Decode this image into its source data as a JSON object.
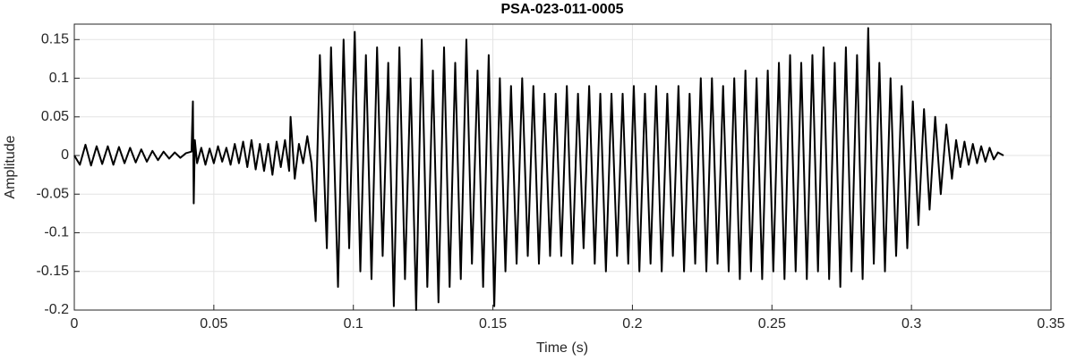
{
  "chart_data": {
    "type": "line",
    "title": "PSA-023-011-0005",
    "x_label": "Time (s)",
    "y_label": "Amplitude",
    "xlim": [
      0,
      0.35
    ],
    "xticks": [
      0,
      0.05,
      0.1,
      0.15,
      0.2,
      0.25,
      0.3,
      0.35
    ],
    "ylim": [
      -0.2,
      0.17
    ],
    "yticks": [
      -0.2,
      -0.15,
      -0.1,
      -0.05,
      0,
      0.05,
      0.1,
      0.15
    ],
    "grid": true,
    "color": "#000000",
    "x": [
      0,
      0.002,
      0.004,
      0.006,
      0.008,
      0.01,
      0.012,
      0.014,
      0.016,
      0.018,
      0.02,
      0.022,
      0.024,
      0.026,
      0.028,
      0.03,
      0.032,
      0.034,
      0.036,
      0.038,
      0.04,
      0.042,
      0.0425,
      0.0428,
      0.0432,
      0.044,
      0.0455,
      0.047,
      0.0485,
      0.05,
      0.0515,
      0.053,
      0.0545,
      0.056,
      0.0575,
      0.059,
      0.0605,
      0.062,
      0.0635,
      0.065,
      0.0665,
      0.068,
      0.0695,
      0.071,
      0.0725,
      0.074,
      0.0755,
      0.077,
      0.0775,
      0.079,
      0.0805,
      0.082,
      0.0835,
      0.085,
      0.0865,
      0.088,
      0.0905,
      0.092,
      0.0945,
      0.0965,
      0.0985,
      0.1005,
      0.1025,
      0.1045,
      0.1065,
      0.1085,
      0.1105,
      0.1125,
      0.1145,
      0.1165,
      0.1185,
      0.1205,
      0.1225,
      0.1245,
      0.1265,
      0.1285,
      0.1305,
      0.1325,
      0.1345,
      0.1365,
      0.1385,
      0.1405,
      0.1425,
      0.1445,
      0.1465,
      0.1485,
      0.1505,
      0.1525,
      0.1545,
      0.1565,
      0.1585,
      0.1605,
      0.1625,
      0.1645,
      0.1665,
      0.1685,
      0.1705,
      0.1725,
      0.1745,
      0.1765,
      0.1785,
      0.1805,
      0.1825,
      0.1845,
      0.1865,
      0.1885,
      0.1905,
      0.1925,
      0.1945,
      0.1965,
      0.1985,
      0.2005,
      0.2025,
      0.2045,
      0.2065,
      0.2085,
      0.2105,
      0.2125,
      0.2145,
      0.2165,
      0.2185,
      0.2205,
      0.2225,
      0.2245,
      0.2265,
      0.2285,
      0.2305,
      0.2325,
      0.2345,
      0.2365,
      0.2385,
      0.2405,
      0.2425,
      0.2445,
      0.2465,
      0.2485,
      0.2505,
      0.2525,
      0.2545,
      0.2565,
      0.2585,
      0.2605,
      0.2625,
      0.2645,
      0.2665,
      0.2685,
      0.2705,
      0.2725,
      0.2745,
      0.2765,
      0.2785,
      0.2805,
      0.2825,
      0.2845,
      0.2865,
      0.2885,
      0.2905,
      0.2925,
      0.2945,
      0.2965,
      0.2985,
      0.3005,
      0.3025,
      0.3045,
      0.3065,
      0.3085,
      0.3105,
      0.3125,
      0.3145,
      0.316,
      0.3175,
      0.319,
      0.3205,
      0.322,
      0.3235,
      0.325,
      0.3265,
      0.328,
      0.3295,
      0.331,
      0.333
    ],
    "values": [
      0,
      -0.012,
      0.014,
      -0.013,
      0.012,
      -0.011,
      0.012,
      -0.012,
      0.011,
      -0.01,
      0.01,
      -0.009,
      0.008,
      -0.008,
      0.006,
      -0.006,
      0.005,
      -0.004,
      0.004,
      -0.003,
      0.003,
      0.005,
      0.07,
      -0.062,
      0.02,
      -0.01,
      0.01,
      -0.012,
      0.009,
      -0.01,
      0.012,
      -0.008,
      0.01,
      -0.012,
      0.015,
      -0.01,
      0.018,
      -0.015,
      0.02,
      -0.018,
      0.015,
      -0.02,
      0.015,
      -0.025,
      0.018,
      -0.015,
      0.02,
      -0.02,
      0.05,
      -0.03,
      0.015,
      -0.01,
      0.025,
      -0.01,
      -0.085,
      0.13,
      -0.12,
      0.14,
      -0.17,
      0.15,
      -0.12,
      0.16,
      -0.15,
      0.13,
      -0.16,
      0.14,
      -0.13,
      0.12,
      -0.195,
      0.14,
      -0.16,
      0.1,
      -0.2,
      0.15,
      -0.17,
      0.11,
      -0.19,
      0.14,
      -0.17,
      0.12,
      -0.16,
      0.15,
      -0.14,
      0.11,
      -0.17,
      0.13,
      -0.195,
      0.1,
      -0.15,
      0.09,
      -0.14,
      0.1,
      -0.13,
      0.09,
      -0.14,
      0.08,
      -0.13,
      0.08,
      -0.13,
      0.09,
      -0.14,
      0.08,
      -0.12,
      0.09,
      -0.14,
      0.08,
      -0.15,
      0.08,
      -0.13,
      0.08,
      -0.14,
      0.09,
      -0.15,
      0.08,
      -0.14,
      0.09,
      -0.15,
      0.08,
      -0.13,
      0.09,
      -0.15,
      0.08,
      -0.14,
      0.1,
      -0.15,
      0.1,
      -0.14,
      0.09,
      -0.15,
      0.1,
      -0.16,
      0.11,
      -0.15,
      0.1,
      -0.16,
      0.11,
      -0.15,
      0.12,
      -0.16,
      0.13,
      -0.15,
      0.12,
      -0.16,
      0.13,
      -0.15,
      0.14,
      -0.16,
      0.12,
      -0.17,
      0.14,
      -0.15,
      0.13,
      -0.16,
      0.165,
      -0.14,
      0.12,
      -0.15,
      0.1,
      -0.13,
      0.09,
      -0.12,
      0.07,
      -0.09,
      0.06,
      -0.07,
      0.05,
      -0.05,
      0.04,
      -0.03,
      0.02,
      -0.015,
      0.018,
      -0.012,
      0.015,
      -0.01,
      0.012,
      -0.008,
      0.01,
      -0.005,
      0.004,
      0
    ]
  }
}
